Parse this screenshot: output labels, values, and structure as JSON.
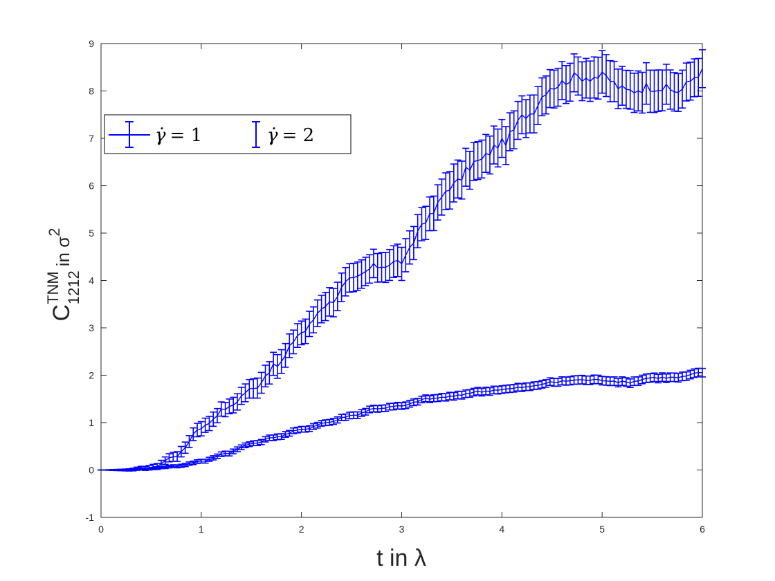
{
  "chart_data": {
    "type": "line",
    "title": "",
    "xlabel": "t in λ",
    "ylabel": {
      "main": "C",
      "superscript": "TNM",
      "subscript": "1212",
      "suffix": "in σ",
      "suffix_superscript": "2"
    },
    "xlim": [
      0,
      6
    ],
    "ylim": [
      -1,
      9
    ],
    "xticks": [
      0,
      1,
      2,
      3,
      4,
      5,
      6
    ],
    "yticks": [
      -1,
      0,
      1,
      2,
      3,
      4,
      5,
      6,
      7,
      8,
      9
    ],
    "grid": false,
    "legend_position": "upper-left",
    "series_color": "#0000ff",
    "series": [
      {
        "name": "γ̇ = 1",
        "legend_dot": "γ̇",
        "legend_rest": "= 1",
        "x": [
          0.0,
          0.25,
          0.5,
          0.75,
          1.0,
          1.25,
          1.5,
          1.75,
          2.0,
          2.25,
          2.5,
          2.75,
          3.0,
          3.25,
          3.5,
          3.75,
          4.0,
          4.25,
          4.5,
          4.75,
          5.0,
          5.25,
          5.5,
          5.75,
          6.0
        ],
        "y": [
          0.0,
          0.0,
          0.05,
          0.3,
          0.9,
          1.3,
          1.7,
          2.2,
          2.9,
          3.5,
          4.0,
          4.3,
          4.4,
          5.3,
          6.0,
          6.5,
          6.9,
          7.5,
          8.1,
          8.3,
          8.3,
          8.0,
          8.1,
          8.0,
          8.4
        ],
        "error": [
          0.0,
          0.02,
          0.05,
          0.1,
          0.15,
          0.15,
          0.2,
          0.25,
          0.25,
          0.3,
          0.3,
          0.3,
          0.35,
          0.35,
          0.4,
          0.4,
          0.4,
          0.4,
          0.4,
          0.4,
          0.45,
          0.4,
          0.45,
          0.4,
          0.4
        ]
      },
      {
        "name": "γ̇ = 2",
        "legend_dot": "γ̇",
        "legend_rest": "= 2",
        "x": [
          0.0,
          0.25,
          0.5,
          0.75,
          1.0,
          1.25,
          1.5,
          1.75,
          2.0,
          2.25,
          2.5,
          2.75,
          3.0,
          3.25,
          3.5,
          3.75,
          4.0,
          4.25,
          4.5,
          4.75,
          5.0,
          5.25,
          5.5,
          5.75,
          6.0
        ],
        "y": [
          0.0,
          0.0,
          0.03,
          0.08,
          0.18,
          0.35,
          0.55,
          0.7,
          0.85,
          1.0,
          1.15,
          1.3,
          1.35,
          1.5,
          1.55,
          1.65,
          1.7,
          1.75,
          1.85,
          1.9,
          1.9,
          1.85,
          1.95,
          1.95,
          2.05
        ],
        "error": [
          0.0,
          0.01,
          0.02,
          0.03,
          0.04,
          0.05,
          0.05,
          0.06,
          0.06,
          0.06,
          0.07,
          0.07,
          0.07,
          0.07,
          0.08,
          0.08,
          0.08,
          0.08,
          0.08,
          0.09,
          0.09,
          0.09,
          0.09,
          0.09,
          0.09
        ]
      }
    ]
  }
}
